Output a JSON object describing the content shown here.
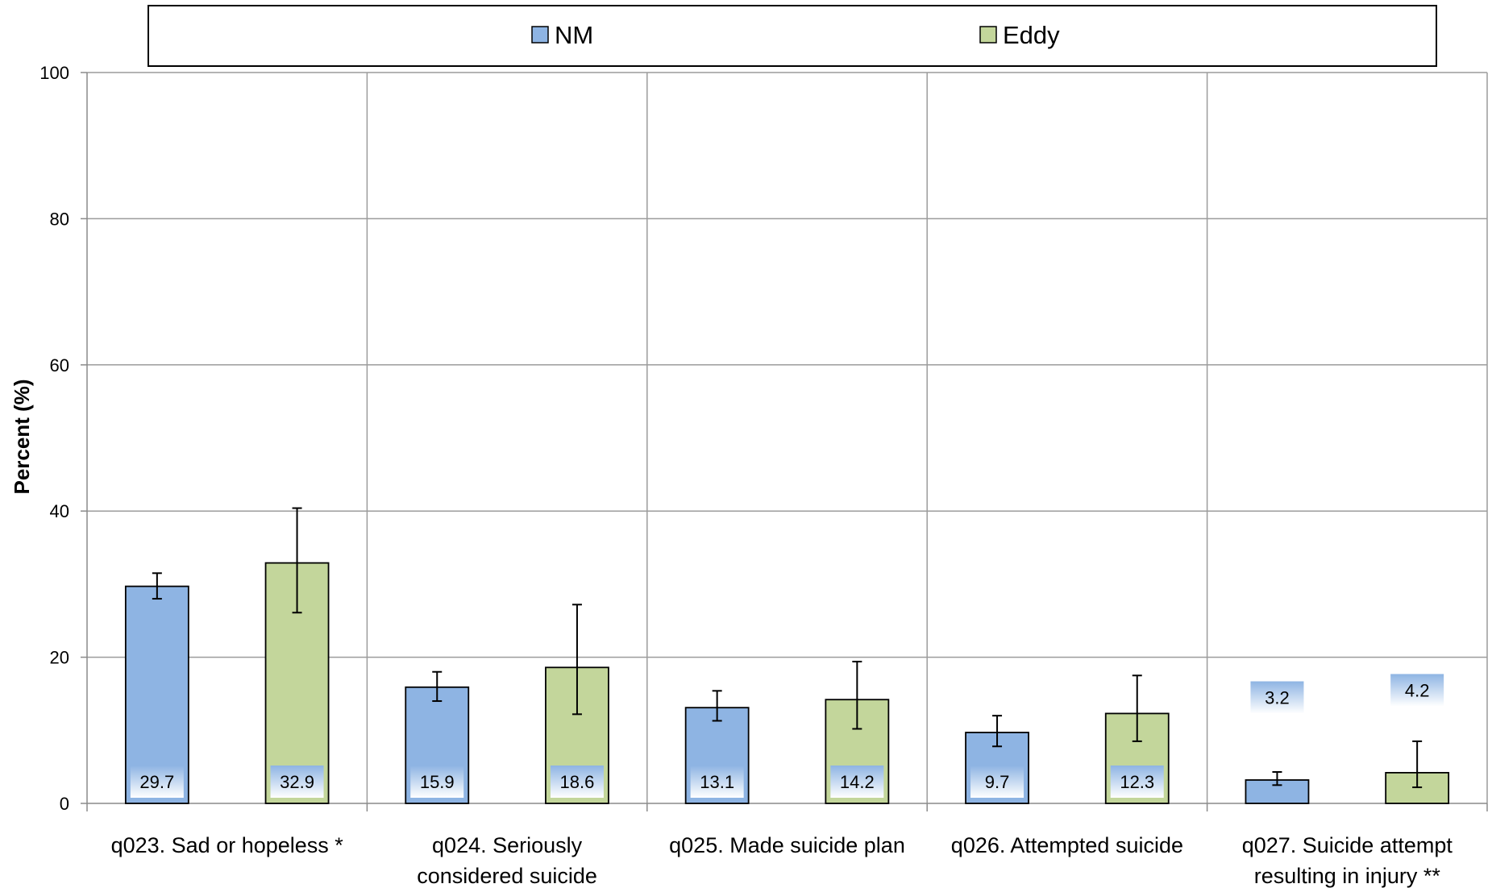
{
  "chart_data": {
    "type": "bar",
    "title": "",
    "xlabel": "",
    "ylabel": "Percent (%)",
    "ylim": [
      0,
      100
    ],
    "yticks": [
      "0",
      "20",
      "40",
      "60",
      "80",
      "100"
    ],
    "grid": true,
    "legend_position": "top",
    "categories": [
      [
        "q023. Sad or hopeless *"
      ],
      [
        "q024. Seriously",
        "considered suicide"
      ],
      [
        "q025. Made suicide plan"
      ],
      [
        "q026. Attempted suicide"
      ],
      [
        "q027. Suicide attempt",
        "resulting in injury **"
      ]
    ],
    "series": [
      {
        "name": "NM",
        "color": "#8eb4e3",
        "values": [
          29.7,
          15.9,
          13.1,
          9.7,
          3.2
        ],
        "labels": [
          "29.7",
          "15.9",
          "13.1",
          "9.7",
          "3.2"
        ],
        "err_low": [
          28.0,
          14.0,
          11.3,
          7.8,
          2.5
        ],
        "err_high": [
          31.5,
          18.0,
          15.4,
          12.0,
          4.3
        ]
      },
      {
        "name": "Eddy",
        "color": "#c3d69b",
        "values": [
          32.9,
          18.6,
          14.2,
          12.3,
          4.2
        ],
        "labels": [
          "32.9",
          "18.6",
          "14.2",
          "12.3",
          "4.2"
        ],
        "err_low": [
          26.1,
          12.2,
          10.2,
          8.5,
          2.2
        ],
        "err_high": [
          40.4,
          27.2,
          19.4,
          17.5,
          8.5
        ]
      }
    ]
  }
}
